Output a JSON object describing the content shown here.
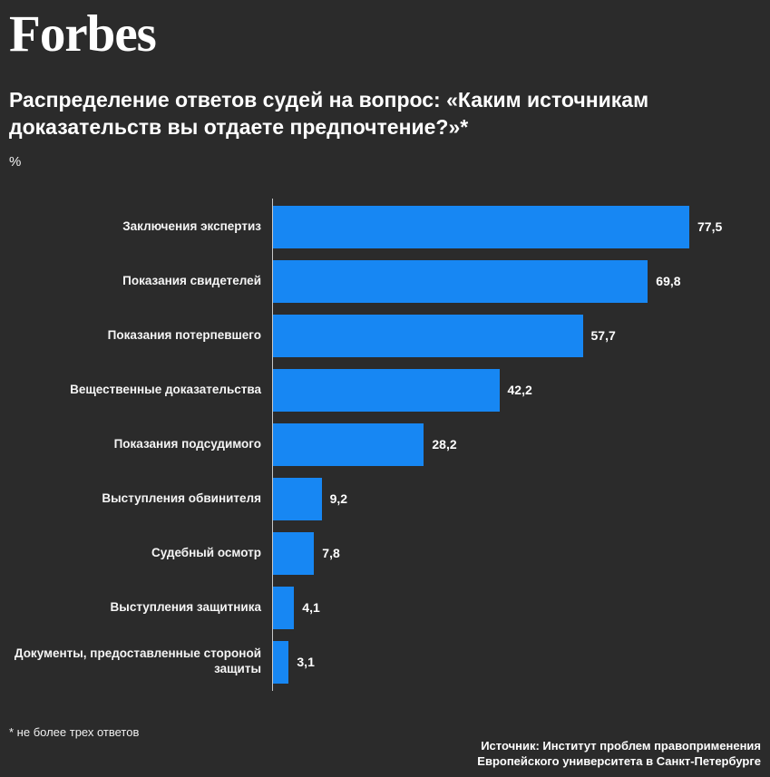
{
  "page": {
    "background": "#2b2b2b",
    "logo": "Forbes",
    "title": "Распределение ответов судей на вопрос: «Каким источникам доказательств вы отдаете предпочтение?»*",
    "unit": "%",
    "footnote": "* не более трех ответов",
    "source_line1": "Источник: Институт проблем правоприменения",
    "source_line2": "Европейского университета в Санкт-Петербурге"
  },
  "chart_data": {
    "type": "bar",
    "orientation": "horizontal",
    "title": "Распределение ответов судей на вопрос: «Каким источникам доказательств вы отдаете предпочтение?»*",
    "xlabel": "%",
    "ylabel": "",
    "xlim": [
      0,
      87
    ],
    "grid": false,
    "legend": false,
    "bar_color": "#1787f3",
    "axis_color": "#c9c9c9",
    "categories": [
      "Заключения экспертиз",
      "Показания свидетелей",
      "Показания потерпевшего",
      "Вещественные доказательства",
      "Показания подсудимого",
      "Выступления обвинителя",
      "Судебный осмотр",
      "Выступления защитника",
      "Документы, предоставленные стороной защиты"
    ],
    "values": [
      77.5,
      69.8,
      57.7,
      42.2,
      28.2,
      9.2,
      7.8,
      4.1,
      3.1
    ],
    "value_labels": [
      "77,5",
      "69,8",
      "57,7",
      "42,2",
      "28,2",
      "9,2",
      "7,8",
      "4,1",
      "3,1"
    ]
  }
}
